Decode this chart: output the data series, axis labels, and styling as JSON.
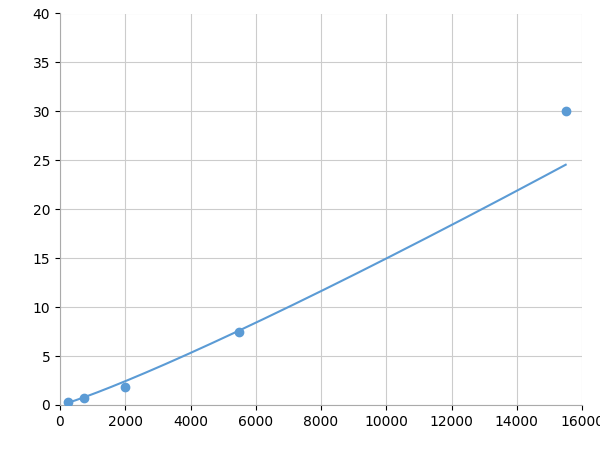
{
  "x": [
    250,
    750,
    2000,
    5500,
    15500
  ],
  "y": [
    0.3,
    0.7,
    1.8,
    7.5,
    30.0
  ],
  "line_color": "#5b9bd5",
  "marker_color": "#5b9bd5",
  "marker_size": 6,
  "line_width": 1.5,
  "xlim": [
    0,
    16000
  ],
  "ylim": [
    0,
    40
  ],
  "xticks": [
    0,
    2000,
    4000,
    6000,
    8000,
    10000,
    12000,
    14000,
    16000
  ],
  "yticks": [
    0,
    5,
    10,
    15,
    20,
    25,
    30,
    35,
    40
  ],
  "grid_color": "#cccccc",
  "background_color": "#ffffff",
  "tick_label_fontsize": 10,
  "figsize": [
    6.0,
    4.5
  ],
  "dpi": 100
}
